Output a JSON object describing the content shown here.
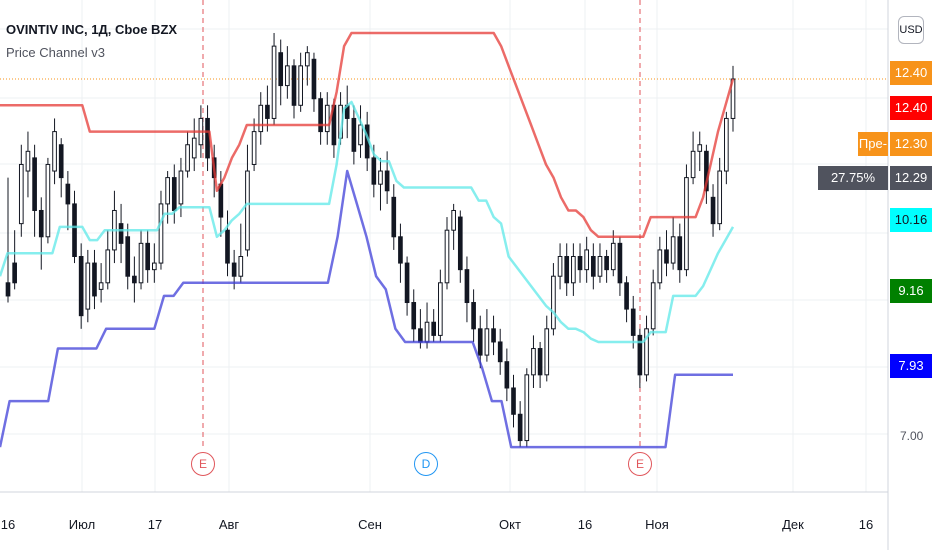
{
  "legend": {
    "title": "OVINTIV INC, 1Д, Cboe BZX",
    "indicator": "Price Channel v3"
  },
  "currency_button": "USD",
  "price_axis": {
    "labels": [
      "7.00",
      "9.16",
      "12.40"
    ],
    "ticks": [
      7.0,
      9.16,
      12.4
    ]
  },
  "time_axis": {
    "labels": [
      "16",
      "Июл",
      "17",
      "Авг",
      "Сен",
      "Окт",
      "16",
      "Ноя",
      "Дек",
      "16"
    ]
  },
  "badges": {
    "last_price": {
      "text": "12.40",
      "color": "#f7931a"
    },
    "upper_channel": {
      "text": "12.40",
      "color": "#ff0000"
    },
    "pre_market_label": {
      "text": "Пре-",
      "color": "#f7931a"
    },
    "pre_market": {
      "text": "12.30",
      "color": "#f7931a"
    },
    "change_pct": {
      "text": "27.75%",
      "color": "#50535e"
    },
    "change_price": {
      "text": "12.29",
      "color": "#50535e"
    },
    "mid_channel": {
      "text": "10.16",
      "color": "#00ffff"
    },
    "green_level": {
      "text": "9.16",
      "color": "#008000"
    },
    "lower_channel": {
      "text": "7.93",
      "color": "#0000ff"
    }
  },
  "events": [
    {
      "label": "E",
      "color": "#e0565b"
    },
    {
      "label": "D",
      "color": "#2196f3"
    },
    {
      "label": "E",
      "color": "#e0565b"
    }
  ],
  "chart_data": {
    "type": "candlestick",
    "title": "OVINTIV INC, 1Д, Cboe BZX",
    "ylim": [
      6.3,
      13.6
    ],
    "candles": [
      [
        9.3,
        9.1,
        10.9,
        9.0
      ],
      [
        9.6,
        9.3,
        10.1,
        9.2
      ],
      [
        10.2,
        11.1,
        11.4,
        10.0
      ],
      [
        11.0,
        11.3,
        11.6,
        10.6
      ],
      [
        11.2,
        10.4,
        11.4,
        10.0
      ],
      [
        10.4,
        10.0,
        10.6,
        9.5
      ],
      [
        10.0,
        11.1,
        11.2,
        9.9
      ],
      [
        11.0,
        11.6,
        11.8,
        10.8
      ],
      [
        11.4,
        10.9,
        11.5,
        10.6
      ],
      [
        10.8,
        10.5,
        11.0,
        10.1
      ],
      [
        10.5,
        9.7,
        10.7,
        9.6
      ],
      [
        9.7,
        8.8,
        9.9,
        8.6
      ],
      [
        8.9,
        9.6,
        9.8,
        8.7
      ],
      [
        9.6,
        9.1,
        9.8,
        8.9
      ],
      [
        9.2,
        9.3,
        9.6,
        9.0
      ],
      [
        9.3,
        9.8,
        10.1,
        9.2
      ],
      [
        9.8,
        10.4,
        10.7,
        9.6
      ],
      [
        10.2,
        9.9,
        10.5,
        9.6
      ],
      [
        10.0,
        9.4,
        10.2,
        9.2
      ],
      [
        9.4,
        9.3,
        9.7,
        9.0
      ],
      [
        9.3,
        9.9,
        10.1,
        9.2
      ],
      [
        9.9,
        9.5,
        10.1,
        9.3
      ],
      [
        9.5,
        9.6,
        9.9,
        9.3
      ],
      [
        9.6,
        10.5,
        10.7,
        9.5
      ],
      [
        10.5,
        10.9,
        11.0,
        10.2
      ],
      [
        10.9,
        10.4,
        11.1,
        10.2
      ],
      [
        10.5,
        11.0,
        11.2,
        10.3
      ],
      [
        11.0,
        11.4,
        11.6,
        10.9
      ],
      [
        11.2,
        11.5,
        11.8,
        11.0
      ],
      [
        11.4,
        11.8,
        12.0,
        11.2
      ],
      [
        11.8,
        11.2,
        12.0,
        11.0
      ],
      [
        11.2,
        10.9,
        11.4,
        10.6
      ],
      [
        10.8,
        10.3,
        11.0,
        10.0
      ],
      [
        10.1,
        9.6,
        10.4,
        9.4
      ],
      [
        9.6,
        9.4,
        9.8,
        9.2
      ],
      [
        9.4,
        9.7,
        10.2,
        9.3
      ],
      [
        9.8,
        11.0,
        11.4,
        9.7
      ],
      [
        11.1,
        11.6,
        11.8,
        11.0
      ],
      [
        11.6,
        12.0,
        12.2,
        11.4
      ],
      [
        12.0,
        11.8,
        12.3,
        11.6
      ],
      [
        11.8,
        12.9,
        13.1,
        11.7
      ],
      [
        12.8,
        12.3,
        13.0,
        12.0
      ],
      [
        12.3,
        12.6,
        12.9,
        12.1
      ],
      [
        12.6,
        12.0,
        12.7,
        11.8
      ],
      [
        12.0,
        12.6,
        12.8,
        11.9
      ],
      [
        12.6,
        12.8,
        12.9,
        12.3
      ],
      [
        12.7,
        12.1,
        12.8,
        11.9
      ],
      [
        12.1,
        11.6,
        12.2,
        11.4
      ],
      [
        11.6,
        12.0,
        12.2,
        11.4
      ],
      [
        12.0,
        11.4,
        12.1,
        11.2
      ],
      [
        11.5,
        12.0,
        12.2,
        11.4
      ],
      [
        12.0,
        11.8,
        12.3,
        11.5
      ],
      [
        11.8,
        11.3,
        12.0,
        11.1
      ],
      [
        11.4,
        11.7,
        12.0,
        11.2
      ],
      [
        11.7,
        11.2,
        11.9,
        11.0
      ],
      [
        11.2,
        10.8,
        11.4,
        10.6
      ],
      [
        10.8,
        11.0,
        11.2,
        10.4
      ],
      [
        11.0,
        10.7,
        11.3,
        10.5
      ],
      [
        10.6,
        10.0,
        10.8,
        9.8
      ],
      [
        10.0,
        9.6,
        10.2,
        9.3
      ],
      [
        9.6,
        9.0,
        9.7,
        8.8
      ],
      [
        9.0,
        8.6,
        9.2,
        8.4
      ],
      [
        8.6,
        8.4,
        8.9,
        8.3
      ],
      [
        8.4,
        8.7,
        9.0,
        8.3
      ],
      [
        8.7,
        8.5,
        8.9,
        8.4
      ],
      [
        8.5,
        9.3,
        9.5,
        8.4
      ],
      [
        9.3,
        10.1,
        10.3,
        9.2
      ],
      [
        10.1,
        10.4,
        10.5,
        9.8
      ],
      [
        10.3,
        9.5,
        10.4,
        9.3
      ],
      [
        9.5,
        9.0,
        9.7,
        8.7
      ],
      [
        9.0,
        8.6,
        9.2,
        8.4
      ],
      [
        8.6,
        8.2,
        8.8,
        8.0
      ],
      [
        8.2,
        8.6,
        8.9,
        8.1
      ],
      [
        8.6,
        8.4,
        8.8,
        8.2
      ],
      [
        8.4,
        8.1,
        8.6,
        7.9
      ],
      [
        8.1,
        7.7,
        8.3,
        7.5
      ],
      [
        7.7,
        7.3,
        7.9,
        7.1
      ],
      [
        7.3,
        6.9,
        7.5,
        6.8
      ],
      [
        6.9,
        7.9,
        8.0,
        6.8
      ],
      [
        7.9,
        8.3,
        8.5,
        7.7
      ],
      [
        8.3,
        7.9,
        8.4,
        7.7
      ],
      [
        7.9,
        8.6,
        8.8,
        7.8
      ],
      [
        8.6,
        9.4,
        9.6,
        8.5
      ],
      [
        9.4,
        9.7,
        9.9,
        9.2
      ],
      [
        9.7,
        9.3,
        9.9,
        9.1
      ],
      [
        9.3,
        9.7,
        9.9,
        9.1
      ],
      [
        9.7,
        9.5,
        9.9,
        9.3
      ],
      [
        9.5,
        9.8,
        10.0,
        9.3
      ],
      [
        9.7,
        9.4,
        9.9,
        9.2
      ],
      [
        9.4,
        9.7,
        9.9,
        9.3
      ],
      [
        9.7,
        9.5,
        9.8,
        9.3
      ],
      [
        9.5,
        9.9,
        10.1,
        9.4
      ],
      [
        9.9,
        9.3,
        10.0,
        9.1
      ],
      [
        9.3,
        8.9,
        9.4,
        8.7
      ],
      [
        8.9,
        8.5,
        9.1,
        8.3
      ],
      [
        8.5,
        7.9,
        8.6,
        7.7
      ],
      [
        7.9,
        8.6,
        8.8,
        7.8
      ],
      [
        8.6,
        9.3,
        9.5,
        8.5
      ],
      [
        9.3,
        9.8,
        10.0,
        9.2
      ],
      [
        9.8,
        9.6,
        10.1,
        9.4
      ],
      [
        9.6,
        10.0,
        10.3,
        9.5
      ],
      [
        10.0,
        9.5,
        10.2,
        9.3
      ],
      [
        9.5,
        10.9,
        11.1,
        9.4
      ],
      [
        10.9,
        11.3,
        11.6,
        10.8
      ],
      [
        11.3,
        11.4,
        11.6,
        11.0
      ],
      [
        11.3,
        10.7,
        11.4,
        10.5
      ],
      [
        10.6,
        10.2,
        10.8,
        10.0
      ],
      [
        10.2,
        11.0,
        11.2,
        10.1
      ],
      [
        11.0,
        11.8,
        11.9,
        10.8
      ],
      [
        11.8,
        12.4,
        12.6,
        11.6
      ]
    ],
    "upper_channel": [
      12.0,
      12.0,
      12.0,
      12.0,
      12.0,
      12.0,
      12.0,
      12.0,
      12.0,
      12.0,
      12.0,
      12.0,
      11.6,
      11.6,
      11.6,
      11.6,
      11.6,
      11.6,
      11.6,
      11.6,
      11.6,
      11.6,
      11.6,
      11.6,
      11.6,
      11.6,
      11.6,
      11.6,
      11.6,
      10.7,
      10.9,
      11.2,
      11.4,
      11.7,
      11.7,
      11.7,
      11.7,
      11.7,
      11.7,
      11.7,
      11.7,
      11.7,
      11.7,
      11.7,
      11.7,
      12.2,
      12.9,
      13.1,
      13.1,
      13.1,
      13.1,
      13.1,
      13.1,
      13.1,
      13.1,
      13.1,
      13.1,
      13.1,
      13.1,
      13.1,
      13.1,
      13.1,
      13.1,
      13.1,
      13.1,
      13.1,
      13.1,
      12.9,
      12.6,
      12.3,
      12.0,
      11.7,
      11.4,
      11.1,
      10.9,
      10.6,
      10.4,
      10.4,
      10.3,
      10.1,
      10.0,
      10.0,
      10.0,
      10.0,
      10.0,
      10.0,
      10.0,
      10.3,
      10.3,
      10.3,
      10.3,
      10.3,
      10.3,
      10.3,
      10.6,
      11.1,
      11.6,
      12.0,
      12.4
    ],
    "lower_channel": [
      6.8,
      7.5,
      7.5,
      7.5,
      7.5,
      7.5,
      8.3,
      8.3,
      8.3,
      8.3,
      8.3,
      8.6,
      8.6,
      8.6,
      8.6,
      8.6,
      8.6,
      9.1,
      9.1,
      9.3,
      9.3,
      9.3,
      9.3,
      9.3,
      9.3,
      9.3,
      9.3,
      9.3,
      9.3,
      9.3,
      9.3,
      9.3,
      9.3,
      9.3,
      9.3,
      10.0,
      11.0,
      10.5,
      10.0,
      9.4,
      9.2,
      8.6,
      8.4,
      8.4,
      8.4,
      8.4,
      8.4,
      8.4,
      8.4,
      8.4,
      8.0,
      7.5,
      7.5,
      6.8,
      6.8,
      6.8,
      6.8,
      6.8,
      6.8,
      6.8,
      6.8,
      6.8,
      6.8,
      6.8,
      6.8,
      6.8,
      6.8,
      6.8,
      6.8,
      6.8,
      7.9,
      7.9,
      7.9,
      7.9,
      7.9,
      7.9,
      7.9
    ]
  }
}
